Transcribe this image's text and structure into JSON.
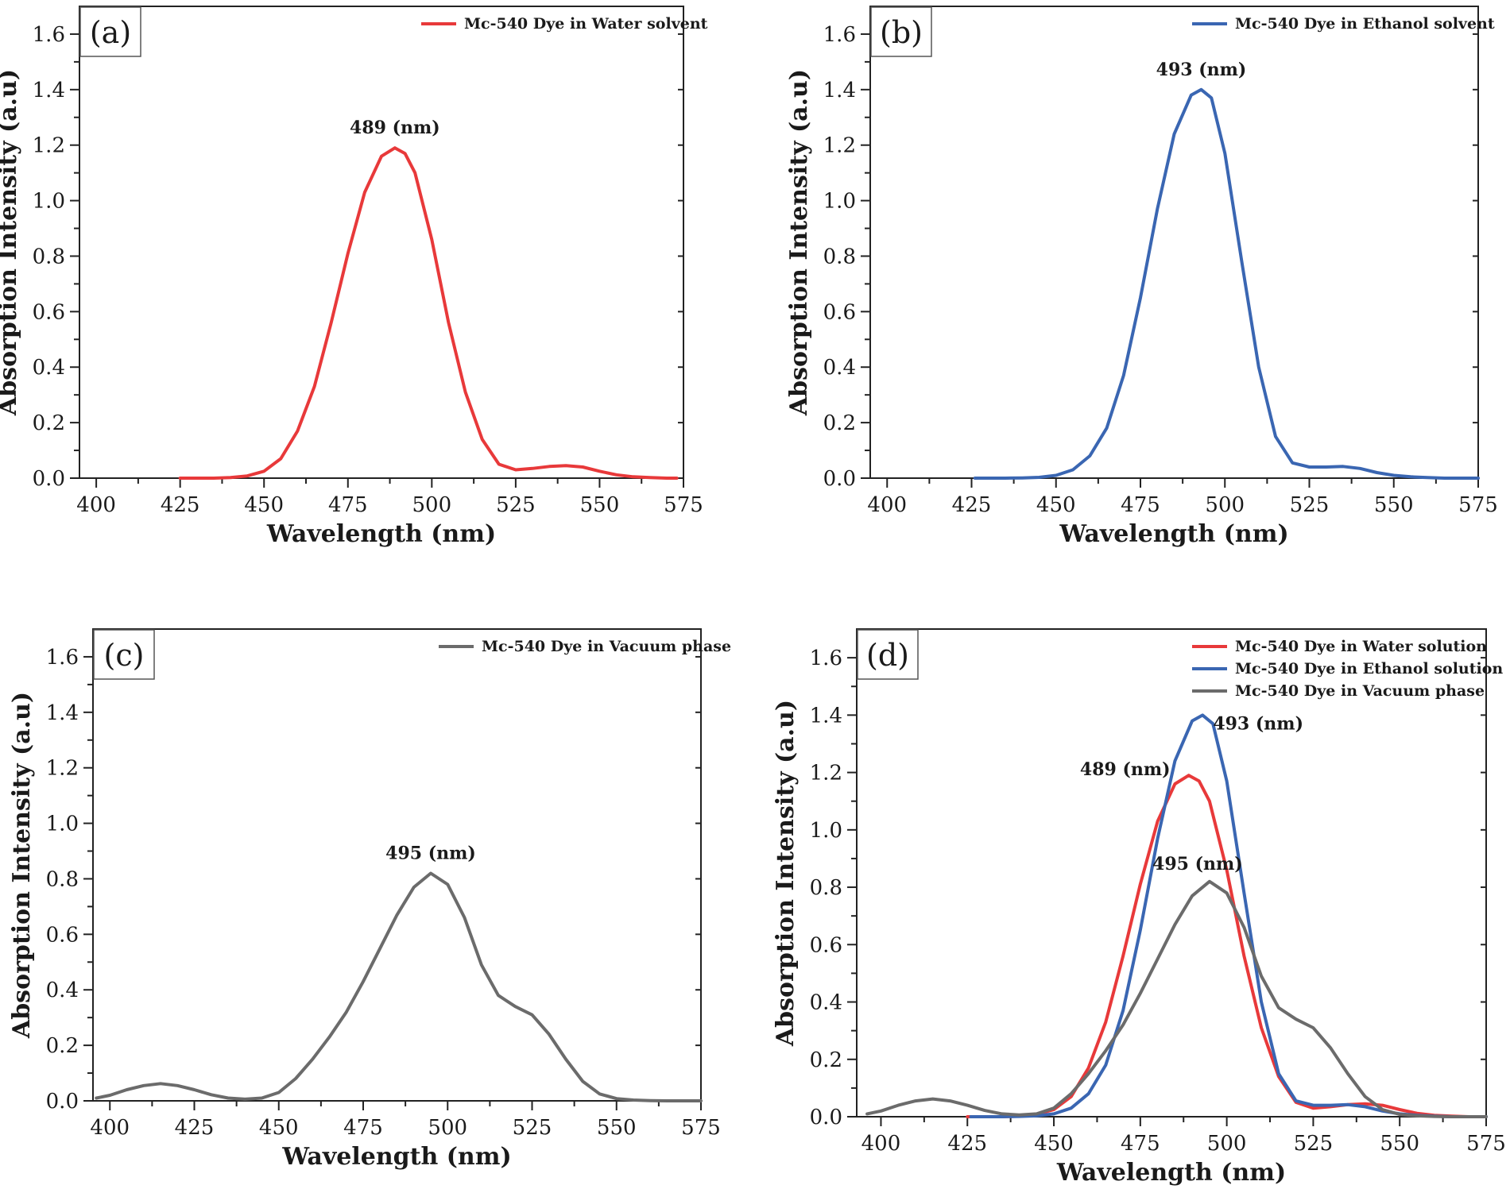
{
  "chart_data": [
    {
      "type": "line",
      "panel_label": "(a)",
      "xlabel": "Wavelength (nm)",
      "ylabel": "Absorption Intensity (a.u)",
      "xlim": [
        395,
        575
      ],
      "ylim": [
        0,
        1.7
      ],
      "xticks": [
        400,
        425,
        450,
        475,
        500,
        525,
        550,
        575
      ],
      "yticks": [
        0.0,
        0.2,
        0.4,
        0.6,
        0.8,
        1.0,
        1.2,
        1.4,
        1.6
      ],
      "legend_position": "top-right",
      "series": [
        {
          "name": "Mc-540 Dye in Water solvent",
          "color": "#e8393a",
          "x": [
            425,
            430,
            435,
            440,
            445,
            450,
            455,
            460,
            465,
            470,
            475,
            480,
            485,
            489,
            492,
            495,
            500,
            505,
            510,
            515,
            520,
            525,
            530,
            535,
            540,
            545,
            550,
            555,
            560,
            565,
            570,
            573
          ],
          "y": [
            0.0,
            0.0,
            0.0,
            0.002,
            0.008,
            0.025,
            0.07,
            0.17,
            0.33,
            0.56,
            0.81,
            1.03,
            1.16,
            1.19,
            1.17,
            1.1,
            0.86,
            0.56,
            0.31,
            0.14,
            0.05,
            0.03,
            0.035,
            0.042,
            0.045,
            0.04,
            0.025,
            0.012,
            0.005,
            0.002,
            0.0,
            0.0
          ]
        }
      ],
      "annotations": [
        {
          "text": "489 (nm)",
          "x": 489,
          "y": 1.19
        }
      ]
    },
    {
      "type": "line",
      "panel_label": "(b)",
      "xlabel": "Wavelength (nm)",
      "ylabel": "Absorption Intensity (a.u)",
      "xlim": [
        395,
        575
      ],
      "ylim": [
        0,
        1.7
      ],
      "xticks": [
        400,
        425,
        450,
        475,
        500,
        525,
        550,
        575
      ],
      "yticks": [
        0.0,
        0.2,
        0.4,
        0.6,
        0.8,
        1.0,
        1.2,
        1.4,
        1.6
      ],
      "legend_position": "top-right",
      "series": [
        {
          "name": "Mc-540 Dye in Ethanol solvent",
          "color": "#3a66b2",
          "x": [
            426,
            430,
            435,
            440,
            445,
            450,
            455,
            460,
            465,
            470,
            475,
            480,
            485,
            490,
            493,
            496,
            500,
            505,
            510,
            515,
            520,
            525,
            530,
            535,
            540,
            545,
            550,
            555,
            560,
            565,
            570,
            575
          ],
          "y": [
            0.0,
            0.0,
            0.0,
            0.001,
            0.003,
            0.01,
            0.03,
            0.08,
            0.18,
            0.37,
            0.65,
            0.97,
            1.24,
            1.38,
            1.4,
            1.37,
            1.17,
            0.78,
            0.4,
            0.15,
            0.055,
            0.04,
            0.04,
            0.042,
            0.035,
            0.02,
            0.01,
            0.005,
            0.002,
            0.0,
            0.0,
            0.0
          ]
        }
      ],
      "annotations": [
        {
          "text": "493 (nm)",
          "x": 493,
          "y": 1.4
        }
      ]
    },
    {
      "type": "line",
      "panel_label": "(c)",
      "xlabel": "Wavelength (nm)",
      "ylabel": "Absorption Intensity (a.u)",
      "xlim": [
        395,
        575
      ],
      "ylim": [
        0,
        1.7
      ],
      "xticks": [
        400,
        425,
        450,
        475,
        500,
        525,
        550,
        575
      ],
      "yticks": [
        0.0,
        0.2,
        0.4,
        0.6,
        0.8,
        1.0,
        1.2,
        1.4,
        1.6
      ],
      "legend_position": "top-right",
      "series": [
        {
          "name": "Mc-540 Dye in Vacuum phase",
          "color": "#6b6b6b",
          "x": [
            396,
            400,
            405,
            410,
            415,
            420,
            425,
            430,
            435,
            440,
            445,
            450,
            455,
            460,
            465,
            470,
            475,
            480,
            485,
            490,
            495,
            500,
            505,
            510,
            515,
            520,
            525,
            530,
            535,
            540,
            545,
            550,
            555,
            560,
            565,
            570,
            575
          ],
          "y": [
            0.01,
            0.02,
            0.04,
            0.055,
            0.062,
            0.055,
            0.04,
            0.022,
            0.01,
            0.006,
            0.01,
            0.03,
            0.08,
            0.15,
            0.23,
            0.32,
            0.43,
            0.55,
            0.67,
            0.77,
            0.82,
            0.78,
            0.66,
            0.49,
            0.38,
            0.34,
            0.31,
            0.24,
            0.15,
            0.07,
            0.025,
            0.008,
            0.003,
            0.001,
            0.0,
            0.0,
            0.0
          ]
        }
      ],
      "annotations": [
        {
          "text": "495 (nm)",
          "x": 495,
          "y": 0.82
        }
      ]
    },
    {
      "type": "line",
      "panel_label": "(d)",
      "xlabel": "Wavelength (nm)",
      "ylabel": "Absorption Intensity (a.u)",
      "xlim": [
        393,
        575
      ],
      "ylim": [
        0,
        1.7
      ],
      "xticks": [
        400,
        425,
        450,
        475,
        500,
        525,
        550,
        575
      ],
      "yticks": [
        0.0,
        0.2,
        0.4,
        0.6,
        0.8,
        1.0,
        1.2,
        1.4,
        1.6
      ],
      "legend_position": "top-right",
      "series": [
        {
          "name": "Mc-540 Dye in Water solution",
          "color": "#e8393a",
          "x": [
            425,
            430,
            435,
            440,
            445,
            450,
            455,
            460,
            465,
            470,
            475,
            480,
            485,
            489,
            492,
            495,
            500,
            505,
            510,
            515,
            520,
            525,
            530,
            535,
            540,
            545,
            550,
            555,
            560,
            565,
            570,
            573
          ],
          "y": [
            0.0,
            0.0,
            0.0,
            0.002,
            0.008,
            0.025,
            0.07,
            0.17,
            0.33,
            0.56,
            0.81,
            1.03,
            1.16,
            1.19,
            1.17,
            1.1,
            0.86,
            0.56,
            0.31,
            0.14,
            0.05,
            0.03,
            0.035,
            0.042,
            0.045,
            0.04,
            0.025,
            0.012,
            0.005,
            0.002,
            0.0,
            0.0
          ]
        },
        {
          "name": "Mc-540 Dye in Ethanol solution",
          "color": "#3a66b2",
          "x": [
            426,
            430,
            435,
            440,
            445,
            450,
            455,
            460,
            465,
            470,
            475,
            480,
            485,
            490,
            493,
            496,
            500,
            505,
            510,
            515,
            520,
            525,
            530,
            535,
            540,
            545,
            550,
            555,
            560,
            565,
            570,
            575
          ],
          "y": [
            0.0,
            0.0,
            0.0,
            0.001,
            0.003,
            0.01,
            0.03,
            0.08,
            0.18,
            0.37,
            0.65,
            0.97,
            1.24,
            1.38,
            1.4,
            1.37,
            1.17,
            0.78,
            0.4,
            0.15,
            0.055,
            0.04,
            0.04,
            0.042,
            0.035,
            0.02,
            0.01,
            0.005,
            0.002,
            0.0,
            0.0,
            0.0
          ]
        },
        {
          "name": "Mc-540 Dye in Vacuum phase",
          "color": "#6b6b6b",
          "x": [
            396,
            400,
            405,
            410,
            415,
            420,
            425,
            430,
            435,
            440,
            445,
            450,
            455,
            460,
            465,
            470,
            475,
            480,
            485,
            490,
            495,
            500,
            505,
            510,
            515,
            520,
            525,
            530,
            535,
            540,
            545,
            550,
            555,
            560,
            565,
            570,
            575
          ],
          "y": [
            0.01,
            0.02,
            0.04,
            0.055,
            0.062,
            0.055,
            0.04,
            0.022,
            0.01,
            0.006,
            0.01,
            0.03,
            0.08,
            0.15,
            0.23,
            0.32,
            0.43,
            0.55,
            0.67,
            0.77,
            0.82,
            0.78,
            0.66,
            0.49,
            0.38,
            0.34,
            0.31,
            0.24,
            0.15,
            0.07,
            0.025,
            0.008,
            0.003,
            0.001,
            0.0,
            0.0,
            0.0
          ]
        }
      ],
      "annotations": [
        {
          "text": "493 (nm)",
          "x": 493,
          "y": 1.4
        },
        {
          "text": "489 (nm)",
          "x": 489,
          "y": 1.19
        },
        {
          "text": "495 (nm)",
          "x": 495,
          "y": 0.82
        }
      ]
    }
  ]
}
